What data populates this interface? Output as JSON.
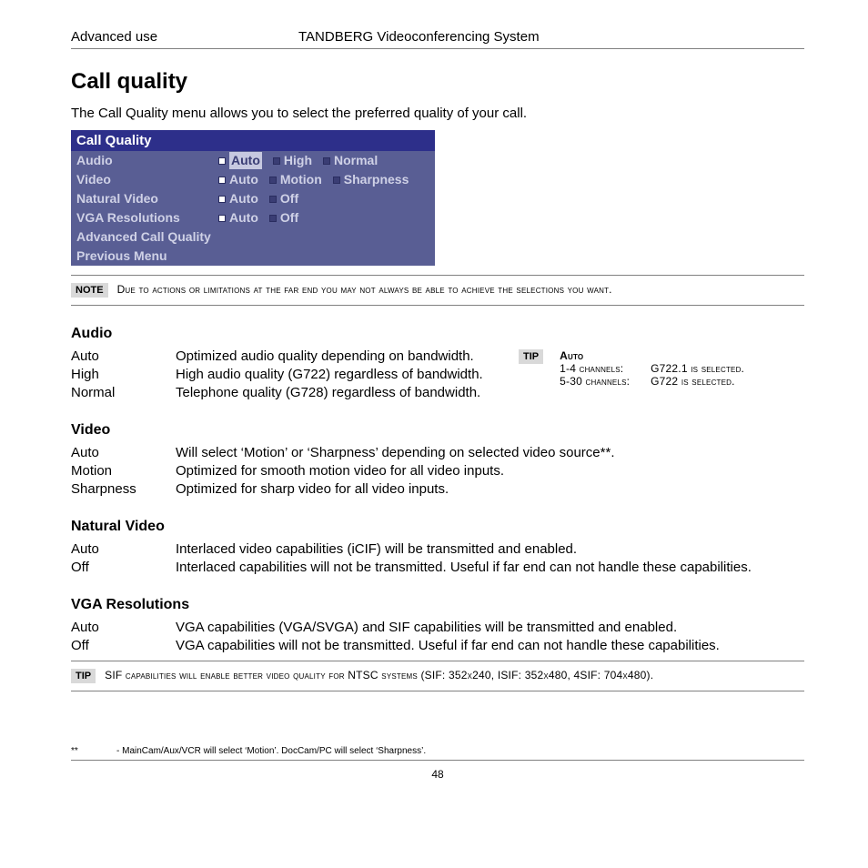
{
  "header": {
    "left": "Advanced use",
    "center": "TANDBERG Videoconferencing System"
  },
  "title": "Call quality",
  "intro": "The Call Quality menu allows you to select the preferred quality of your call.",
  "menu": {
    "title": "Call Quality",
    "rows": [
      {
        "label": "Audio",
        "options": [
          {
            "text": "Auto",
            "selected": true,
            "highlight": true
          },
          {
            "text": "High",
            "selected": false
          },
          {
            "text": "Normal",
            "selected": false
          }
        ]
      },
      {
        "label": "Video",
        "options": [
          {
            "text": "Auto",
            "selected": true
          },
          {
            "text": "Motion",
            "selected": false
          },
          {
            "text": "Sharpness",
            "selected": false
          }
        ]
      },
      {
        "label": "Natural Video",
        "options": [
          {
            "text": "Auto",
            "selected": true
          },
          {
            "text": "Off",
            "selected": false
          }
        ]
      },
      {
        "label": "VGA Resolutions",
        "options": [
          {
            "text": "Auto",
            "selected": true
          },
          {
            "text": "Off",
            "selected": false
          }
        ]
      },
      {
        "label": "Advanced Call Quality",
        "options": []
      },
      {
        "label": "Previous Menu",
        "options": []
      }
    ]
  },
  "note": {
    "badge": "NOTE",
    "text": "Due to actions or limitations at the far end you may not always be able to achieve the selections you want."
  },
  "sections": {
    "audio": {
      "heading": "Audio",
      "rows": [
        {
          "term": "Auto",
          "desc": "Optimized audio quality depending on bandwidth."
        },
        {
          "term": "High",
          "desc": "High audio quality (G722) regardless of bandwidth."
        },
        {
          "term": "Normal",
          "desc": "Telephone quality (G728) regardless of bandwidth."
        }
      ],
      "tip": {
        "badge": "TIP",
        "heading": "Auto",
        "lines": [
          {
            "left": "1-4 channels:",
            "right": "G722.1 is selected."
          },
          {
            "left": "5-30 channels:",
            "right": "G722 is selected."
          }
        ]
      }
    },
    "video": {
      "heading": "Video",
      "rows": [
        {
          "term": "Auto",
          "desc": "Will select ‘Motion’ or ‘Sharpness’ depending on selected video source**."
        },
        {
          "term": "Motion",
          "desc": "Optimized for smooth motion video for all video inputs."
        },
        {
          "term": "Sharpness",
          "desc": "Optimized for sharp video for all video inputs."
        }
      ]
    },
    "natural": {
      "heading": "Natural Video",
      "rows": [
        {
          "term": "Auto",
          "desc": "Interlaced video capabilities (iCIF) will be transmitted and enabled."
        },
        {
          "term": "Off",
          "desc": "Interlaced capabilities will not be transmitted. Useful if far end can not handle these capabilities."
        }
      ]
    },
    "vga": {
      "heading": "VGA Resolutions",
      "rows": [
        {
          "term": "Auto",
          "desc": "VGA capabilities (VGA/SVGA) and SIF capabilities will be transmitted and enabled."
        },
        {
          "term": "Off",
          "desc": "VGA capabilities will not be transmitted. Useful if far end can not handle these capabilities."
        }
      ]
    }
  },
  "tip2": {
    "badge": "TIP",
    "text": "SIF capabilities will enable better video quality for NTSC systems (SIF: 352x240, ISIF: 352x480, 4SIF: 704x480)."
  },
  "footnote": {
    "mark": "**",
    "text": "- MainCam/Aux/VCR will select ‘Motion’. DocCam/PC will select ‘Sharpness’."
  },
  "pagenum": "48"
}
